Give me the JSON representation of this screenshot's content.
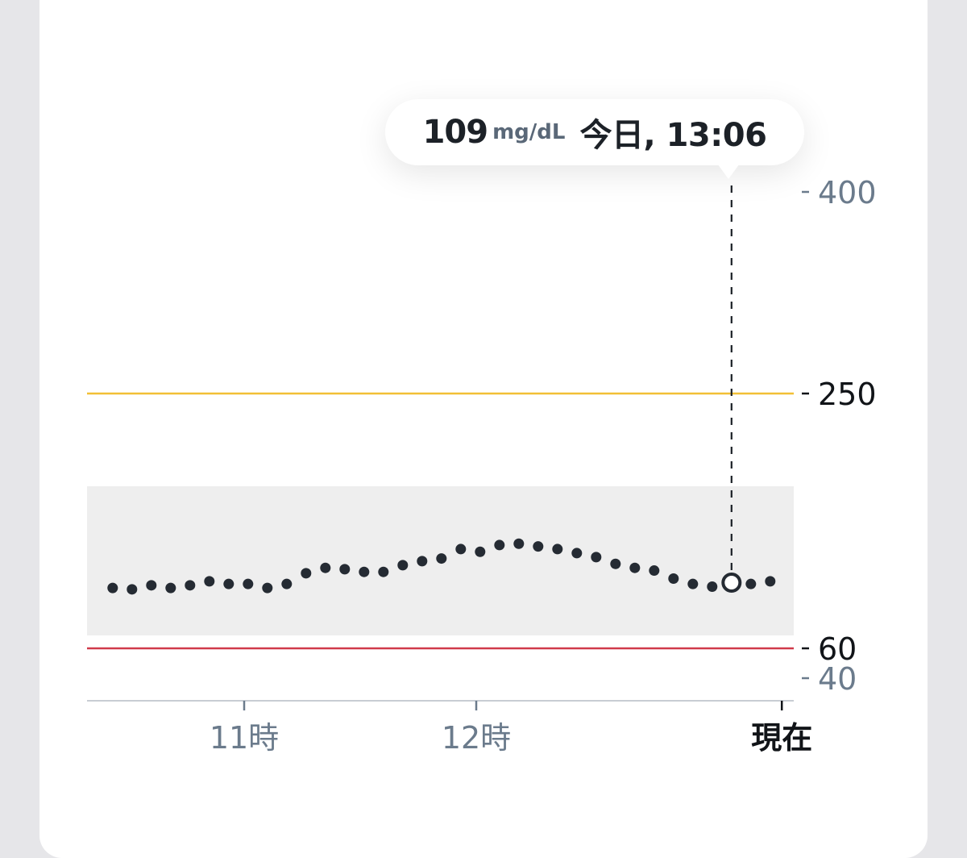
{
  "tooltip": {
    "value": "109",
    "unit": "mg/dL",
    "time": "今日, 13:06"
  },
  "colors": {
    "high_threshold": "#f2c036",
    "low_threshold": "#d03a4a",
    "target_band": "#eeeeee",
    "dots": "#252b33",
    "muted_label": "#6b7b8c",
    "strong_label": "#111418"
  },
  "chart_data": {
    "type": "scatter",
    "title": "",
    "xlabel": "",
    "ylabel": "",
    "y_ticks": [
      {
        "value": 400,
        "label": "400",
        "emphasis": false
      },
      {
        "value": 250,
        "label": "250",
        "emphasis": true
      },
      {
        "value": 60,
        "label": "60",
        "emphasis": true
      },
      {
        "value": 40,
        "label": "40",
        "emphasis": false
      }
    ],
    "x_ticks": [
      {
        "label": "11時",
        "minutes": 660,
        "emphasis": false
      },
      {
        "label": "12時",
        "minutes": 720,
        "emphasis": false
      },
      {
        "label": "現在",
        "minutes": 799,
        "emphasis": true
      }
    ],
    "thresholds": {
      "high": 250,
      "low": 60
    },
    "target_range": [
      70,
      180
    ],
    "selected_index": 32,
    "points": [
      {
        "t": "10:26",
        "v": 105
      },
      {
        "t": "10:31",
        "v": 104
      },
      {
        "t": "10:36",
        "v": 107
      },
      {
        "t": "10:41",
        "v": 105
      },
      {
        "t": "10:46",
        "v": 107
      },
      {
        "t": "10:51",
        "v": 110
      },
      {
        "t": "10:56",
        "v": 108
      },
      {
        "t": "11:01",
        "v": 108
      },
      {
        "t": "11:06",
        "v": 105
      },
      {
        "t": "11:11",
        "v": 108
      },
      {
        "t": "11:16",
        "v": 116
      },
      {
        "t": "11:21",
        "v": 120
      },
      {
        "t": "11:26",
        "v": 119
      },
      {
        "t": "11:31",
        "v": 117
      },
      {
        "t": "11:36",
        "v": 117
      },
      {
        "t": "11:41",
        "v": 122
      },
      {
        "t": "11:46",
        "v": 125
      },
      {
        "t": "11:51",
        "v": 127
      },
      {
        "t": "11:56",
        "v": 134
      },
      {
        "t": "12:01",
        "v": 132
      },
      {
        "t": "12:06",
        "v": 137
      },
      {
        "t": "12:11",
        "v": 138
      },
      {
        "t": "12:16",
        "v": 136
      },
      {
        "t": "12:21",
        "v": 134
      },
      {
        "t": "12:26",
        "v": 131
      },
      {
        "t": "12:31",
        "v": 128
      },
      {
        "t": "12:36",
        "v": 123
      },
      {
        "t": "12:41",
        "v": 120
      },
      {
        "t": "12:46",
        "v": 118
      },
      {
        "t": "12:51",
        "v": 112
      },
      {
        "t": "12:56",
        "v": 108
      },
      {
        "t": "13:01",
        "v": 106
      },
      {
        "t": "13:06",
        "v": 109
      },
      {
        "t": "13:11",
        "v": 108
      },
      {
        "t": "13:16",
        "v": 110
      }
    ]
  }
}
